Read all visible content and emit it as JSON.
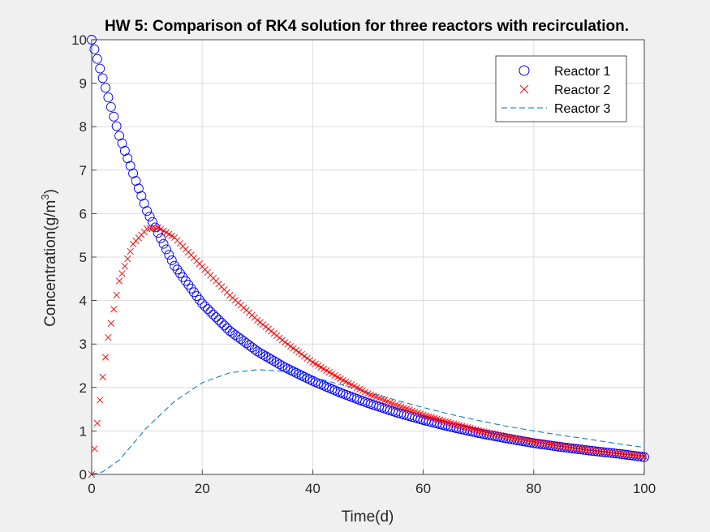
{
  "chart_data": {
    "type": "line",
    "title": "HW 5: Comparison of RK4 solution for three reactors with recirculation.",
    "xlabel": "Time(d)",
    "ylabel": "Concentration(g/m",
    "ylabel_superscript": "3",
    "ylabel_close": ")",
    "xlim": [
      0,
      100
    ],
    "ylim": [
      0,
      10
    ],
    "xticks": [
      0,
      20,
      40,
      60,
      80,
      100
    ],
    "yticks": [
      0,
      1,
      2,
      3,
      4,
      5,
      6,
      7,
      8,
      9,
      10
    ],
    "grid": true,
    "legend_position": "top-right",
    "colors": {
      "reactor1": "#0000ff",
      "reactor2": "#ff0000",
      "reactor3": "#0072bd",
      "grid": "#dcdcdc",
      "axes": "#262626"
    },
    "series": [
      {
        "name": "Reactor 1",
        "marker": "circle",
        "x": [
          0,
          5,
          10,
          15,
          20,
          25,
          30,
          35,
          40,
          45,
          50,
          55,
          60,
          65,
          70,
          75,
          80,
          85,
          90,
          95,
          100
        ],
        "y": [
          10.0,
          7.79,
          6.06,
          4.8,
          3.93,
          3.3,
          2.83,
          2.46,
          2.15,
          1.88,
          1.64,
          1.43,
          1.25,
          1.09,
          0.95,
          0.83,
          0.72,
          0.63,
          0.55,
          0.48,
          0.4
        ]
      },
      {
        "name": "Reactor 2",
        "marker": "x",
        "x": [
          0,
          1,
          2,
          3,
          5,
          7.5,
          10,
          12,
          15,
          20,
          25,
          30,
          35,
          40,
          45,
          50,
          55,
          60,
          65,
          70,
          75,
          80,
          85,
          90,
          95,
          100
        ],
        "y": [
          0,
          1.18,
          2.24,
          3.15,
          4.45,
          5.3,
          5.65,
          5.68,
          5.45,
          4.78,
          4.12,
          3.55,
          3.04,
          2.58,
          2.2,
          1.86,
          1.6,
          1.37,
          1.18,
          1.01,
          0.87,
          0.75,
          0.65,
          0.56,
          0.49,
          0.42
        ]
      },
      {
        "name": "Reactor 3",
        "marker": "dashed",
        "x": [
          0,
          2,
          5,
          10,
          15,
          20,
          25,
          30,
          35,
          40,
          45,
          50,
          55,
          60,
          65,
          70,
          75,
          80,
          85,
          90,
          95,
          100
        ],
        "y": [
          0,
          0.06,
          0.33,
          1.08,
          1.68,
          2.11,
          2.34,
          2.41,
          2.37,
          2.24,
          2.07,
          1.89,
          1.71,
          1.54,
          1.38,
          1.24,
          1.11,
          1.0,
          0.9,
          0.81,
          0.71,
          0.62
        ]
      }
    ]
  }
}
